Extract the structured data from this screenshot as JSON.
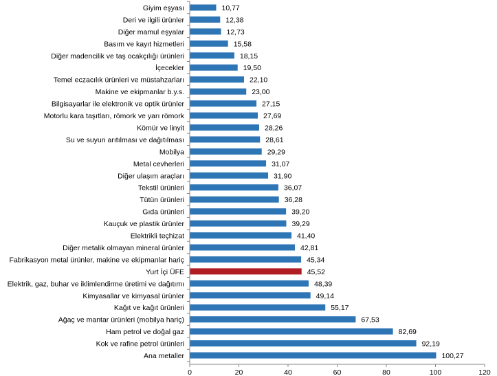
{
  "chart_data": {
    "type": "bar",
    "orientation": "horizontal",
    "categories": [
      "Giyim eşyası",
      "Deri ve ilgili ürünler",
      "Diğer mamul eşyalar",
      "Basım ve kayıt hizmetleri",
      "Diğer madencilik ve taş ocakçılığı ürünleri",
      "İçecekler",
      "Temel eczacılık ürünleri ve müstahzarları",
      "Makine ve ekipmanlar b.y.s.",
      "Bilgisayarlar ile elektronik ve optik ürünler",
      "Motorlu kara taşıtları, römork ve yarı römork",
      "Kömür ve linyit",
      "Su ve suyun arıtılması ve dağıtılması",
      "Mobilya",
      "Metal cevherleri",
      "Diğer ulaşım araçları",
      "Tekstil ürünleri",
      "Tütün ürünleri",
      "Gıda ürünleri",
      "Kauçuk ve plastik ürünler",
      "Elektrikli teçhizat",
      "Diğer metalik olmayan mineral ürünler",
      "Fabrikasyon metal ürünler, makine ve ekipmanlar hariç",
      "Yurt İçi ÜFE",
      "Elektrik, gaz, buhar ve iklimlendirme üretimi ve dağıtımı",
      "Kimyasallar ve kimyasal ürünler",
      "Kağıt ve kağıt ürünleri",
      "Ağaç ve mantar ürünleri (mobilya hariç)",
      "Ham petrol ve doğal gaz",
      "Kok ve rafine petrol ürünleri",
      "Ana metaller"
    ],
    "values": [
      10.77,
      12.38,
      12.73,
      15.58,
      18.15,
      19.5,
      22.1,
      23.0,
      27.15,
      27.69,
      28.26,
      28.61,
      29.29,
      31.07,
      31.9,
      36.07,
      36.28,
      39.2,
      39.29,
      41.4,
      42.81,
      45.34,
      45.52,
      48.39,
      49.14,
      55.17,
      67.53,
      82.69,
      92.19,
      100.27
    ],
    "value_labels": [
      "10,77",
      "12,38",
      "12,73",
      "15,58",
      "18,15",
      "19,50",
      "22,10",
      "23,00",
      "27,15",
      "27,69",
      "28,26",
      "28,61",
      "29,29",
      "31,07",
      "31,90",
      "36,07",
      "36,28",
      "39,20",
      "39,29",
      "41,40",
      "42,81",
      "45,34",
      "45,52",
      "48,39",
      "49,14",
      "55,17",
      "67,53",
      "82,69",
      "92,19",
      "100,27"
    ],
    "highlight_category": "Yurt İçi ÜFE",
    "xlim": [
      0,
      120
    ],
    "x_ticks": [
      "0",
      "20",
      "40",
      "60",
      "80",
      "100",
      "120"
    ],
    "grid": false,
    "colors": {
      "bar": "#2E75B6",
      "highlight": "#B01E23",
      "axis": "#868686"
    },
    "title": "",
    "xlabel": "",
    "ylabel": ""
  }
}
